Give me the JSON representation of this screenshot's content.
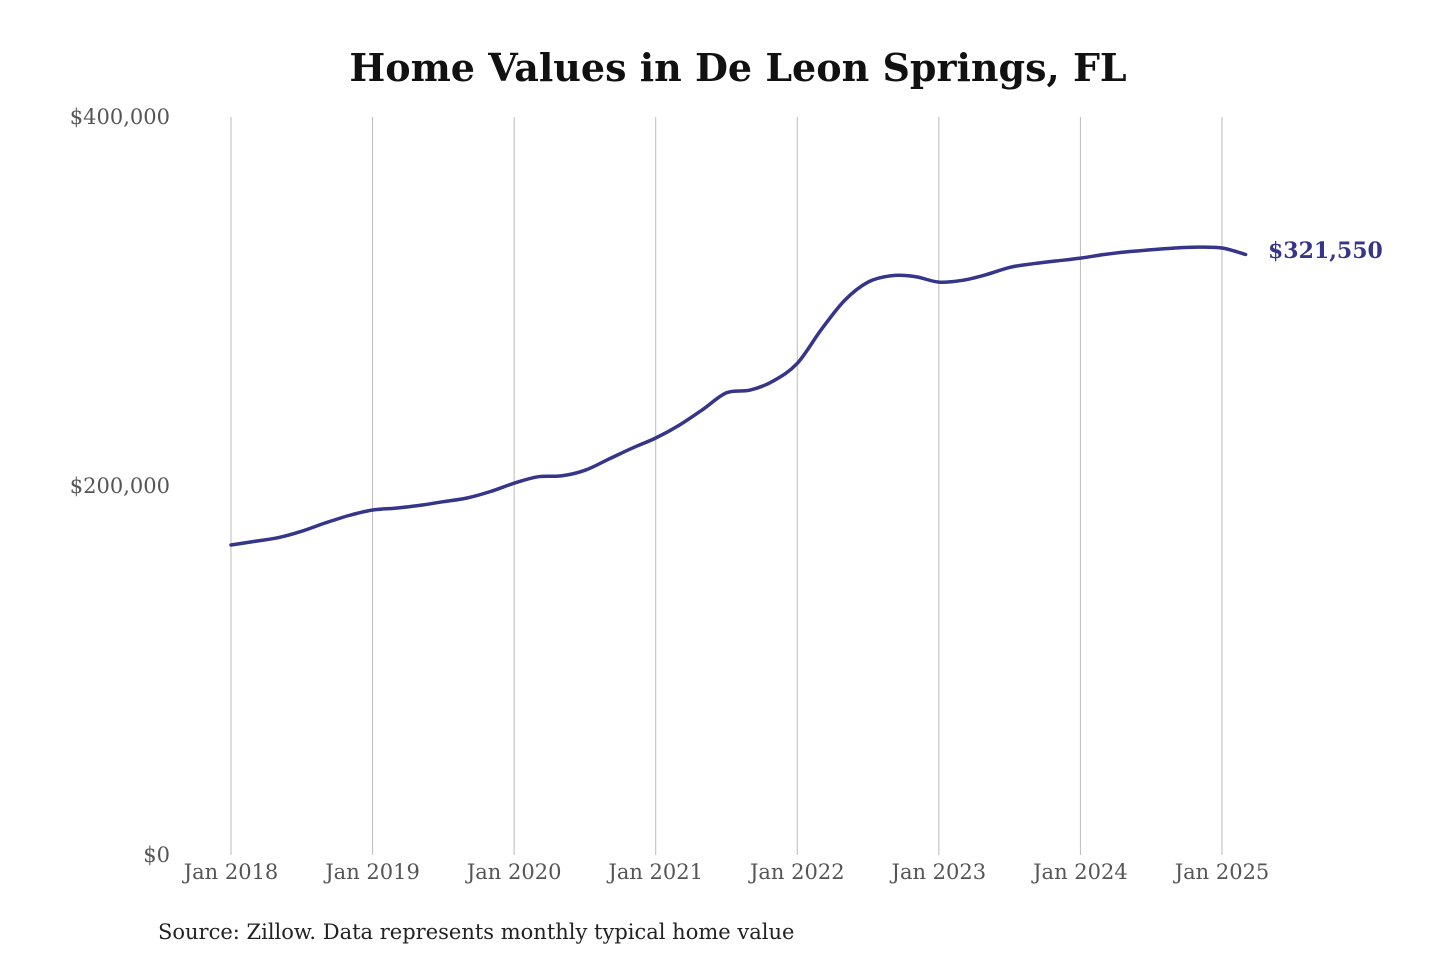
{
  "chart_data": {
    "type": "line",
    "title": "Home Values in De Leon Springs, FL",
    "xlabel": "",
    "ylabel": "",
    "source_note": "Source: Zillow. Data represents monthly typical home value",
    "y_ticks": [
      {
        "value": 0,
        "label": "$0"
      },
      {
        "value": 200000,
        "label": "$200,000"
      },
      {
        "value": 400000,
        "label": "$400,000"
      }
    ],
    "ylim": [
      0,
      400000
    ],
    "x_ticks": [
      {
        "value": 2018,
        "label": "Jan 2018"
      },
      {
        "value": 2019,
        "label": "Jan 2019"
      },
      {
        "value": 2020,
        "label": "Jan 2020"
      },
      {
        "value": 2021,
        "label": "Jan 2021"
      },
      {
        "value": 2022,
        "label": "Jan 2022"
      },
      {
        "value": 2023,
        "label": "Jan 2023"
      },
      {
        "value": 2024,
        "label": "Jan 2024"
      },
      {
        "value": 2025,
        "label": "Jan 2025"
      }
    ],
    "grid": {
      "vertical": true,
      "horizontal": false
    },
    "line_color": "#35358a",
    "end_label": "$321,550",
    "series": [
      {
        "x": [
          2018.0,
          2018.167,
          2018.333,
          2018.5,
          2018.667,
          2018.833,
          2019.0,
          2019.167,
          2019.333,
          2019.5,
          2019.667,
          2019.833,
          2020.0,
          2020.167,
          2020.333,
          2020.5,
          2020.667,
          2020.833,
          2021.0,
          2021.167,
          2021.333,
          2021.5,
          2021.667,
          2021.833,
          2022.0,
          2022.167,
          2022.333,
          2022.5,
          2022.667,
          2022.833,
          2023.0,
          2023.167,
          2023.333,
          2023.5,
          2023.667,
          2023.833,
          2024.0,
          2024.167,
          2024.333,
          2024.5,
          2024.667,
          2024.833,
          2025.0,
          2025.167
        ],
        "y": [
          168000,
          170000,
          172000,
          175500,
          180000,
          184000,
          187000,
          188000,
          189500,
          191500,
          193500,
          197000,
          201500,
          205000,
          205500,
          208500,
          214500,
          220500,
          226000,
          233000,
          241500,
          250500,
          252000,
          257000,
          266500,
          284500,
          300500,
          310500,
          314000,
          313500,
          310500,
          311500,
          314500,
          318500,
          320500,
          322000,
          323500,
          325500,
          327000,
          328000,
          329000,
          329500,
          329000,
          325500
        ]
      }
    ]
  }
}
